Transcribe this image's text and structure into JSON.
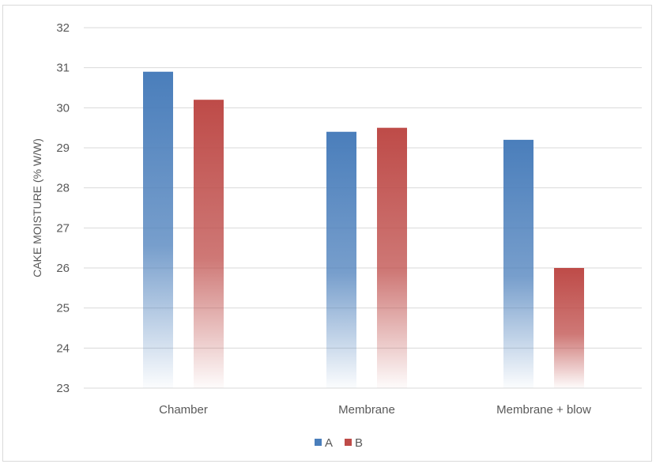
{
  "chart_data": {
    "type": "bar",
    "title": "",
    "xlabel": "",
    "ylabel": "CAKE MOISTURE (% W/W)",
    "categories": [
      "Chamber",
      "Membrane",
      "Membrane + blow"
    ],
    "series": [
      {
        "name": "A",
        "values": [
          30.9,
          29.4,
          29.2
        ],
        "color": "#4a7ebb"
      },
      {
        "name": "B",
        "values": [
          30.2,
          29.5,
          26.0
        ],
        "color": "#be4b48"
      }
    ],
    "ylim": [
      23,
      32
    ],
    "yticks": [
      23,
      24,
      25,
      26,
      27,
      28,
      29,
      30,
      31,
      32
    ],
    "grid": true,
    "legend_position": "bottom"
  }
}
